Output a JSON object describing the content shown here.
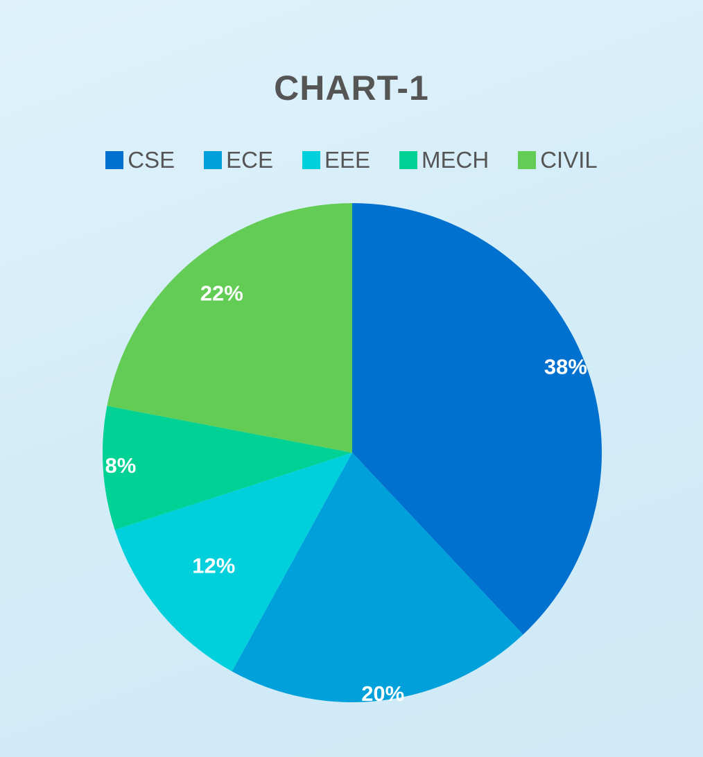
{
  "chart_data": {
    "type": "pie",
    "title": "CHART-1",
    "legend_position": "top",
    "categories": [
      "CSE",
      "ECE",
      "EEE",
      "MECH",
      "CIVIL"
    ],
    "values": [
      38,
      20,
      12,
      8,
      22
    ],
    "labels": [
      "38%",
      "20%",
      "12%",
      "8%",
      "22%"
    ],
    "colors": [
      "#0071ce",
      "#00a0db",
      "#00d0dc",
      "#00d194",
      "#62cc55"
    ]
  }
}
